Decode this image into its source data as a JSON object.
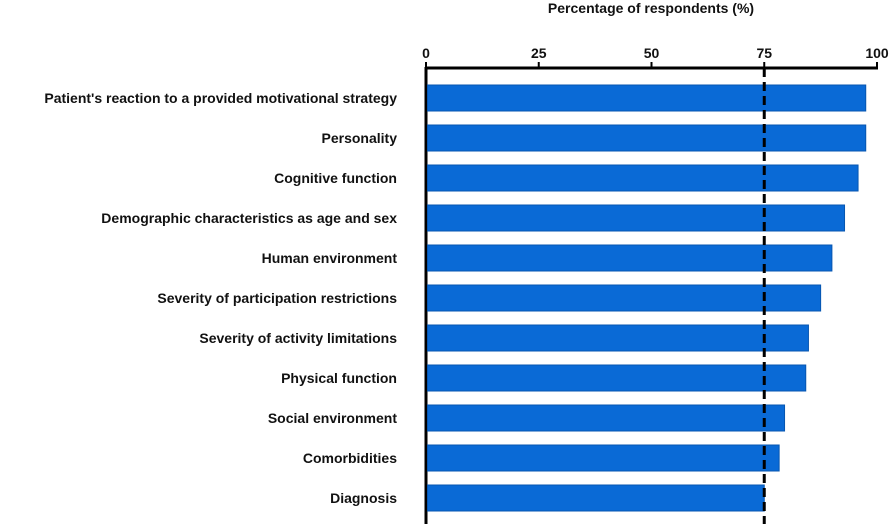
{
  "chart_data": {
    "type": "bar",
    "orientation": "horizontal",
    "title": "",
    "xlabel": "Percentage of respondents (%)",
    "ylabel": "",
    "xlim": [
      0,
      100
    ],
    "xticks": [
      0,
      25,
      50,
      75,
      100
    ],
    "xtick_labels": [
      "0",
      "25",
      "50",
      "75",
      "100"
    ],
    "x_axis_position": "top",
    "grid": false,
    "reference_line": {
      "value": 75,
      "style": "dashed"
    },
    "categories": [
      "Patient's reaction to a provided motivational strategy",
      "Personality",
      "Cognitive function",
      "Demographic characteristics as age and sex",
      "Human environment",
      "Severity of participation restrictions",
      "Severity of activity limitations",
      "Physical function",
      "Social environment",
      "Comorbidities",
      "Diagnosis"
    ],
    "values": [
      97.5,
      97.5,
      95.8,
      92.8,
      90,
      87.5,
      84.8,
      84.2,
      79.5,
      78.3,
      75
    ],
    "colors": {
      "bar": "#0a6ad6",
      "bar_stroke": "#0756b0",
      "axis": "#000000",
      "text": "#111111"
    }
  }
}
